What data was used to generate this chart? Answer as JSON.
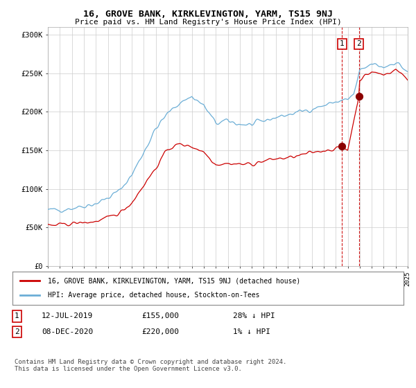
{
  "title": "16, GROVE BANK, KIRKLEVINGTON, YARM, TS15 9NJ",
  "subtitle": "Price paid vs. HM Land Registry's House Price Index (HPI)",
  "hpi_label": "HPI: Average price, detached house, Stockton-on-Tees",
  "property_label": "16, GROVE BANK, KIRKLEVINGTON, YARM, TS15 9NJ (detached house)",
  "sale1_date": "12-JUL-2019",
  "sale1_price": 155000,
  "sale1_hpi": "28% ↓ HPI",
  "sale2_date": "08-DEC-2020",
  "sale2_price": 220000,
  "sale2_hpi": "1% ↓ HPI",
  "sale1_year": 2019.53,
  "sale2_year": 2020.93,
  "hpi_color": "#6baed6",
  "property_color": "#cc0000",
  "dot_color": "#8b0000",
  "vline_color": "#cc0000",
  "background_color": "#ffffff",
  "grid_color": "#cccccc",
  "year_start": 1995,
  "year_end": 2025,
  "ylim_min": 0,
  "ylim_max": 310000,
  "yticks": [
    0,
    50000,
    100000,
    150000,
    200000,
    250000,
    300000
  ],
  "ytick_labels": [
    "£0",
    "£50K",
    "£100K",
    "£150K",
    "£200K",
    "£250K",
    "£300K"
  ],
  "footer": "Contains HM Land Registry data © Crown copyright and database right 2024.\nThis data is licensed under the Open Government Licence v3.0."
}
